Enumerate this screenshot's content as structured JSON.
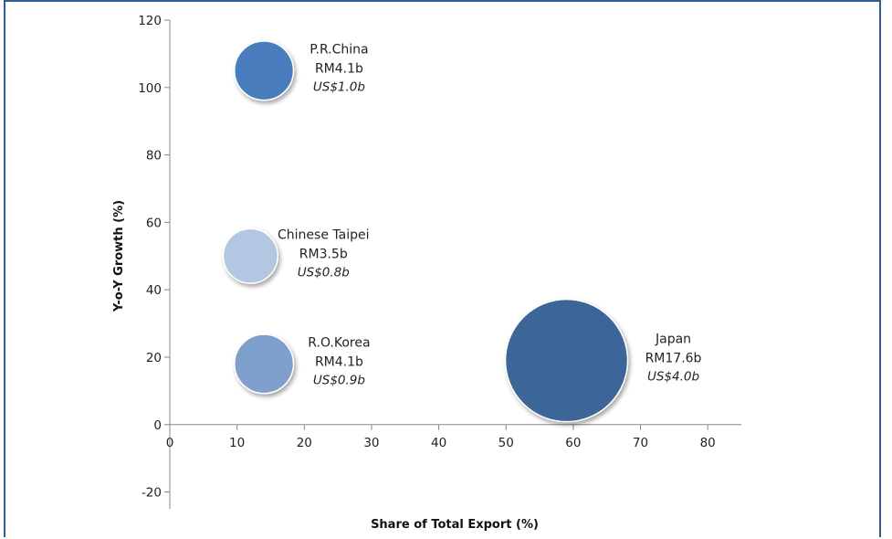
{
  "chart_data": {
    "type": "scatter",
    "subtype": "bubble",
    "title": "",
    "xlabel": "Share of Total Export (%)",
    "ylabel": "Y-o-Y Growth (%)",
    "xlim": [
      0,
      85
    ],
    "ylim": [
      -25,
      120
    ],
    "xticks": [
      0,
      10,
      20,
      30,
      40,
      50,
      60,
      70,
      80
    ],
    "yticks": [
      -20,
      0,
      20,
      40,
      60,
      80,
      100,
      120
    ],
    "grid": false,
    "points": [
      {
        "name": "P.R.China",
        "x": 14,
        "y": 105,
        "value_rm": "RM4.1b",
        "value_usd": "US$1.0b",
        "size": 4.1,
        "color": "#4a7dbd"
      },
      {
        "name": "Chinese Taipei",
        "x": 12,
        "y": 50,
        "value_rm": "RM3.5b",
        "value_usd": "US$0.8b",
        "size": 3.5,
        "color": "#b3c6e2"
      },
      {
        "name": "R.O.Korea",
        "x": 14,
        "y": 18,
        "value_rm": "RM4.1b",
        "value_usd": "US$0.9b",
        "size": 4.1,
        "color": "#7f9fcc"
      },
      {
        "name": "Japan",
        "x": 59,
        "y": 19,
        "value_rm": "RM17.6b",
        "value_usd": "US$4.0b",
        "size": 17.6,
        "color": "#3c6698"
      }
    ]
  },
  "colors": {
    "frame": "#2e5d93",
    "axis": "#888888"
  }
}
